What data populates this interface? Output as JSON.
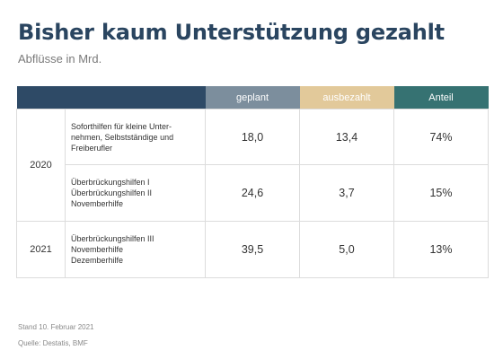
{
  "title": "Bisher kaum Unterstützung gezahlt",
  "subtitle": "Abflüsse in Mrd.",
  "chart_data": {
    "type": "table",
    "columns": [
      "",
      "geplant",
      "ausbezahlt",
      "Anteil"
    ],
    "rows": [
      {
        "year": "2020",
        "program": [
          "Soforthilfen für kleine Unter-",
          "nehmen, Selbstständige und",
          "Freiberufler"
        ],
        "planned": "18,0",
        "paid": "13,4",
        "share": "74%"
      },
      {
        "year": "2020",
        "program": [
          "Überbrückungshilfen I",
          "Überbrückungshilfen II",
          "Novemberhilfe"
        ],
        "planned": "24,6",
        "paid": "3,7",
        "share": "15%"
      },
      {
        "year": "2021",
        "program": [
          "Überbrückungshilfen III",
          "Novemberhilfe",
          "Dezemberhilfe"
        ],
        "planned": "39,5",
        "paid": "5,0",
        "share": "13%"
      }
    ]
  },
  "footer": {
    "date": "Stand 10. Februar 2021",
    "source": "Quelle: Destatis, BMF"
  }
}
